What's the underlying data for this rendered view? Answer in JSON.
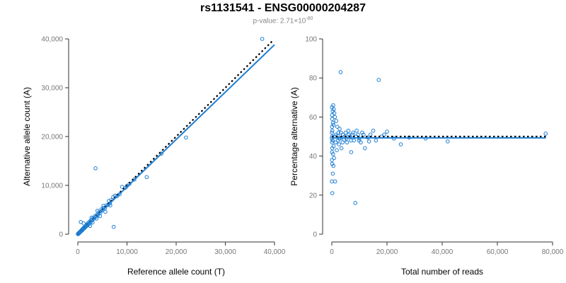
{
  "figure": {
    "title": "rs1131541 - ENSG00000204287",
    "subtitle_prefix": "p-value: 2.71×10",
    "subtitle_exp": "-80"
  },
  "colors": {
    "points": "#1f7fd4",
    "fit": "#1f7fd4",
    "reference": "#000000"
  },
  "chart_data": [
    {
      "type": "scatter",
      "xlabel": "Reference allele count (T)",
      "ylabel": "Alternative allele count (A)",
      "xlim": [
        0,
        40000
      ],
      "ylim": [
        0,
        40000
      ],
      "xticks": [
        0,
        10000,
        20000,
        30000,
        40000
      ],
      "xtick_labels": [
        "0",
        "10,000",
        "20,000",
        "30,000",
        "40,000"
      ],
      "yticks": [
        0,
        10000,
        20000,
        30000,
        40000
      ],
      "ytick_labels": [
        "0",
        "10,000",
        "20,000",
        "30,000",
        "40,000"
      ],
      "grid": false,
      "fit_line": {
        "slope": 0.97,
        "intercept": 0
      },
      "reference_line": {
        "slope": 1.0,
        "intercept": 0,
        "style": "dotted"
      },
      "points": [
        [
          37500,
          40000
        ],
        [
          22000,
          19800
        ],
        [
          17000,
          16500
        ],
        [
          14000,
          11700
        ],
        [
          11500,
          11200
        ],
        [
          10500,
          10300
        ],
        [
          10000,
          9900
        ],
        [
          9700,
          9500
        ],
        [
          9000,
          9700
        ],
        [
          3600,
          13500
        ],
        [
          7300,
          1500
        ],
        [
          8500,
          8200
        ],
        [
          8000,
          7800
        ],
        [
          7600,
          7900
        ],
        [
          7200,
          7600
        ],
        [
          6800,
          7000
        ],
        [
          6500,
          6300
        ],
        [
          6100,
          6000
        ],
        [
          5800,
          5900
        ],
        [
          5500,
          5300
        ],
        [
          5200,
          5400
        ],
        [
          5000,
          4900
        ],
        [
          4800,
          5100
        ],
        [
          4600,
          4400
        ],
        [
          4300,
          4500
        ],
        [
          4100,
          3900
        ],
        [
          3900,
          4000
        ],
        [
          3700,
          3600
        ],
        [
          3500,
          3700
        ],
        [
          3300,
          3200
        ],
        [
          3100,
          3300
        ],
        [
          2900,
          2800
        ],
        [
          2700,
          2900
        ],
        [
          2600,
          2500
        ],
        [
          2400,
          2600
        ],
        [
          2300,
          2100
        ],
        [
          2100,
          2300
        ],
        [
          2000,
          1900
        ],
        [
          1900,
          2000
        ],
        [
          1800,
          1700
        ],
        [
          1700,
          1800
        ],
        [
          1600,
          1500
        ],
        [
          1500,
          1600
        ],
        [
          1400,
          1300
        ],
        [
          1300,
          1400
        ],
        [
          1200,
          1100
        ],
        [
          1100,
          1200
        ],
        [
          1000,
          900
        ],
        [
          900,
          1000
        ],
        [
          800,
          700
        ],
        [
          750,
          800
        ],
        [
          700,
          650
        ],
        [
          650,
          700
        ],
        [
          600,
          550
        ],
        [
          550,
          600
        ],
        [
          500,
          450
        ],
        [
          450,
          500
        ],
        [
          400,
          350
        ],
        [
          350,
          400
        ],
        [
          300,
          250
        ],
        [
          250,
          300
        ],
        [
          200,
          150
        ],
        [
          150,
          200
        ],
        [
          100,
          80
        ],
        [
          80,
          120
        ],
        [
          50,
          40
        ],
        [
          30,
          60
        ],
        [
          20,
          10
        ],
        [
          600,
          2500
        ],
        [
          1200,
          2200
        ],
        [
          2500,
          1700
        ],
        [
          3000,
          2400
        ],
        [
          2800,
          3400
        ],
        [
          3800,
          3200
        ],
        [
          4500,
          3700
        ],
        [
          4000,
          4800
        ],
        [
          5600,
          4600
        ],
        [
          5200,
          5800
        ],
        [
          6600,
          5900
        ],
        [
          6300,
          6800
        ]
      ]
    },
    {
      "type": "scatter",
      "xlabel": "Total number of reads",
      "ylabel": "Percentage alternative (A)",
      "xlim": [
        0,
        80000
      ],
      "ylim": [
        0,
        100
      ],
      "xticks": [
        0,
        20000,
        40000,
        60000,
        80000
      ],
      "xtick_labels": [
        "0",
        "20,000",
        "40,000",
        "60,000",
        "80,000"
      ],
      "yticks": [
        0,
        20,
        40,
        60,
        80,
        100
      ],
      "ytick_labels": [
        "0",
        "20",
        "40",
        "60",
        "80",
        "100"
      ],
      "grid": false,
      "fit_line": {
        "y": 49.3
      },
      "reference_line": {
        "y": 50,
        "style": "dotted"
      },
      "points": [
        [
          77500,
          51.5
        ],
        [
          42000,
          47.5
        ],
        [
          34000,
          49
        ],
        [
          28000,
          49.5
        ],
        [
          25000,
          46
        ],
        [
          22500,
          49
        ],
        [
          20000,
          52.5
        ],
        [
          18000,
          50
        ],
        [
          17000,
          79
        ],
        [
          16000,
          48
        ],
        [
          15000,
          53
        ],
        [
          14000,
          51
        ],
        [
          13000,
          49.5
        ],
        [
          12000,
          44
        ],
        [
          11000,
          52
        ],
        [
          10500,
          47
        ],
        [
          10000,
          49
        ],
        [
          9500,
          51
        ],
        [
          9000,
          53
        ],
        [
          8500,
          16
        ],
        [
          8000,
          48
        ],
        [
          7500,
          51
        ],
        [
          7000,
          42
        ],
        [
          6500,
          50
        ],
        [
          6000,
          53
        ],
        [
          5500,
          47
        ],
        [
          5000,
          52
        ],
        [
          4500,
          48.5
        ],
        [
          4000,
          51
        ],
        [
          3500,
          44
        ],
        [
          3200,
          83
        ],
        [
          3000,
          49
        ],
        [
          2800,
          54
        ],
        [
          2600,
          46
        ],
        [
          2400,
          52
        ],
        [
          2200,
          48
        ],
        [
          2000,
          55
        ],
        [
          1800,
          43
        ],
        [
          1600,
          58
        ],
        [
          1400,
          47
        ],
        [
          1200,
          27
        ],
        [
          1100,
          60
        ],
        [
          1000,
          50
        ],
        [
          900,
          62
        ],
        [
          800,
          39
        ],
        [
          700,
          64
        ],
        [
          650,
          45
        ],
        [
          600,
          56
        ],
        [
          550,
          35
        ],
        [
          500,
          66
        ],
        [
          450,
          41
        ],
        [
          400,
          57
        ],
        [
          350,
          31
        ],
        [
          300,
          63
        ],
        [
          250,
          48
        ],
        [
          200,
          21
        ],
        [
          180,
          53
        ],
        [
          160,
          44
        ],
        [
          140,
          59
        ],
        [
          120,
          36
        ],
        [
          100,
          50
        ],
        [
          90,
          61
        ],
        [
          80,
          42
        ],
        [
          70,
          55
        ],
        [
          60,
          47
        ],
        [
          50,
          65
        ],
        [
          40,
          38
        ],
        [
          30,
          52
        ],
        [
          20,
          49
        ],
        [
          10,
          27
        ],
        [
          1500,
          51
        ],
        [
          2100,
          50.5
        ],
        [
          2700,
          49
        ],
        [
          3300,
          52
        ],
        [
          3900,
          47
        ],
        [
          4700,
          50
        ],
        [
          5300,
          49
        ],
        [
          6200,
          51
        ],
        [
          6900,
          48
        ],
        [
          7700,
          52
        ],
        [
          8800,
          50
        ],
        [
          9800,
          48
        ],
        [
          11500,
          51
        ],
        [
          13500,
          47.5
        ],
        [
          19000,
          51
        ]
      ]
    }
  ]
}
